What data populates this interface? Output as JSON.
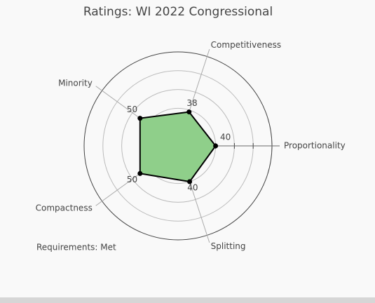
{
  "chart_data": {
    "type": "radar",
    "title": "Ratings: WI 2022 Congressional",
    "categories": [
      "Proportionality",
      "Competitiveness",
      "Minority",
      "Compactness",
      "Splitting"
    ],
    "values": [
      40,
      38,
      50,
      50,
      40
    ],
    "color": "#8fcf8a",
    "rlim": [
      0,
      100
    ],
    "rticks": [
      20,
      40,
      60,
      80,
      100
    ],
    "grid": true,
    "annotation": "Requirements: Met"
  }
}
